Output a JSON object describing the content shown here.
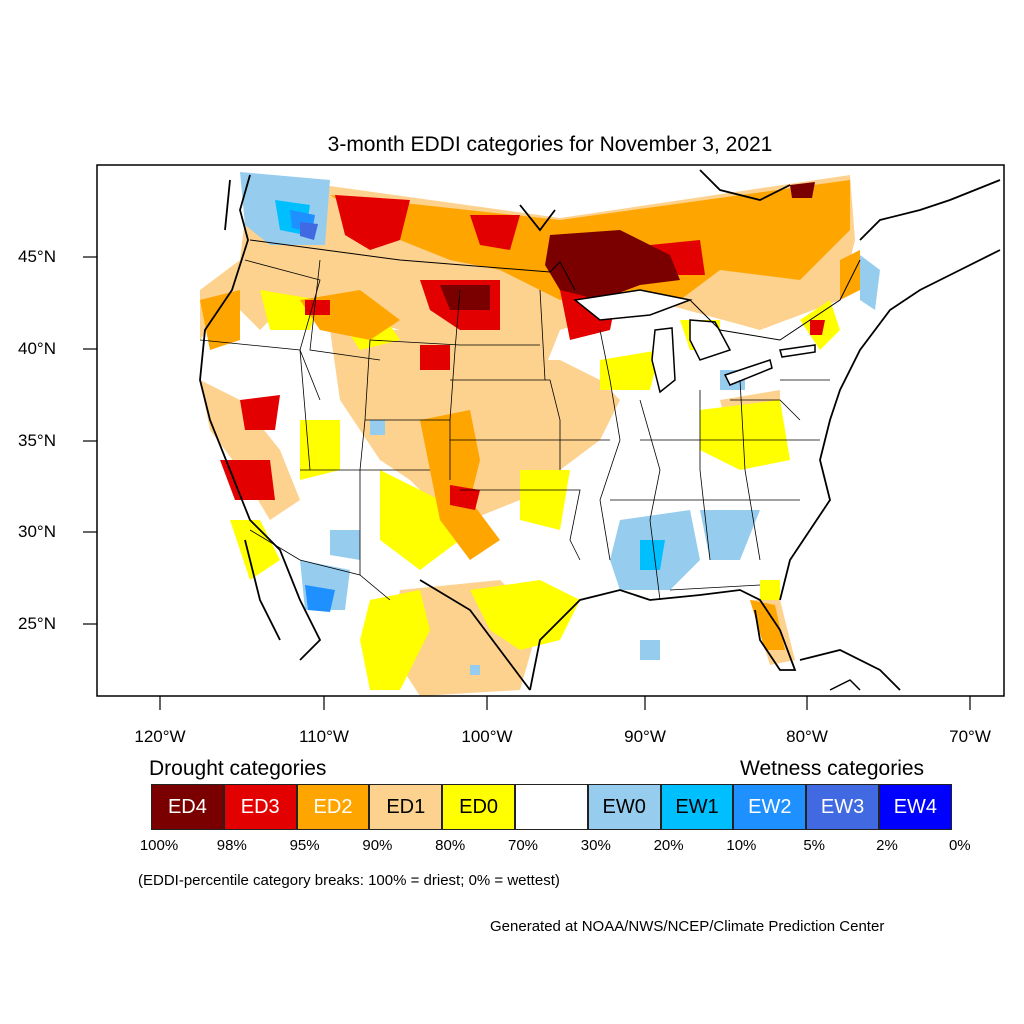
{
  "title": "3-month EDDI categories for November 3, 2021",
  "y_axis_labels": [
    "45°N",
    "40°N",
    "35°N",
    "30°N",
    "25°N"
  ],
  "x_axis_labels": [
    "120°W",
    "110°W",
    "100°W",
    "90°W",
    "80°W",
    "70°W"
  ],
  "legend": {
    "drought_title": "Drought categories",
    "wetness_title": "Wetness categories",
    "categories": [
      {
        "label": "ED4",
        "color": "#7a0000",
        "text_color": "#ffffff"
      },
      {
        "label": "ED3",
        "color": "#e30000",
        "text_color": "#ffffff"
      },
      {
        "label": "ED2",
        "color": "#ffa500",
        "text_color": "#ffffff"
      },
      {
        "label": "ED1",
        "color": "#fdd18e",
        "text_color": "#000000"
      },
      {
        "label": "ED0",
        "color": "#ffff00",
        "text_color": "#000000"
      },
      {
        "label": "",
        "color": "#ffffff",
        "text_color": "#000000"
      },
      {
        "label": "EW0",
        "color": "#96cdee",
        "text_color": "#000000"
      },
      {
        "label": "EW1",
        "color": "#00bfff",
        "text_color": "#000000"
      },
      {
        "label": "EW2",
        "color": "#1e90ff",
        "text_color": "#ffffff"
      },
      {
        "label": "EW3",
        "color": "#4169e1",
        "text_color": "#ffffff"
      },
      {
        "label": "EW4",
        "color": "#0000ff",
        "text_color": "#ffffff"
      }
    ],
    "breaks": [
      "100%",
      "98%",
      "95%",
      "90%",
      "80%",
      "70%",
      "30%",
      "20%",
      "10%",
      "5%",
      "2%",
      "0%"
    ]
  },
  "footnote": "(EDDI-percentile category breaks: 100% = driest; 0% = wettest)",
  "credit": "Generated at NOAA/NWS/NCEP/Climate Prediction Center"
}
